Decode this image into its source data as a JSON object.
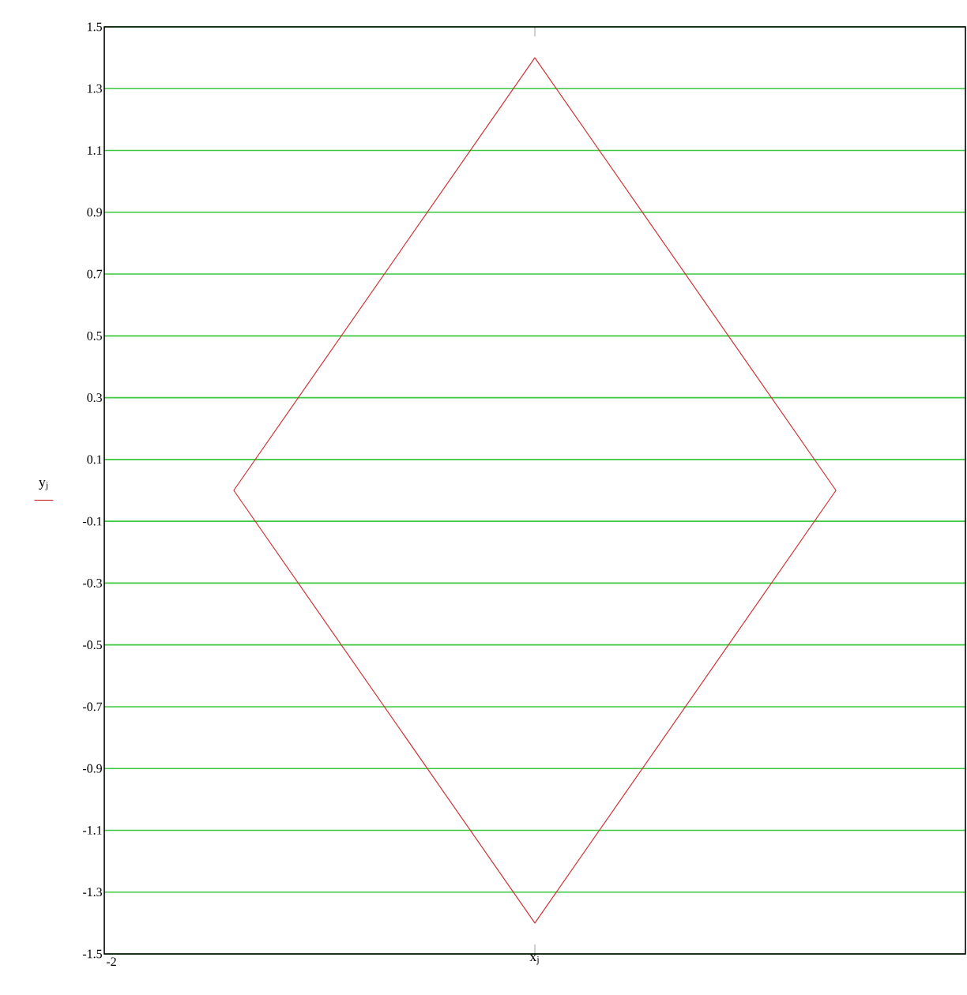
{
  "chart_data": {
    "type": "line",
    "categories": [
      null,
      null,
      null
    ],
    "series": [
      {
        "color": "#cc3333",
        "values": [
          0,
          1.4,
          0
        ]
      },
      {
        "color": "#cc3333",
        "values": [
          0,
          -1.4,
          0
        ]
      }
    ],
    "xlabel": "x$_{j}$",
    "ylabel": "y$_{j}$",
    "annotations": [
      "-2"
    ],
    "ylim": [
      -1.5,
      1.5
    ],
    "yticks": [
      {
        "value": -1.5,
        "label": "-1.5"
      },
      {
        "value": -1.3,
        "label": "-1.3"
      },
      {
        "value": -1.1,
        "label": "-1.1"
      },
      {
        "value": -0.9,
        "label": "-0.9"
      },
      {
        "value": -0.7,
        "label": "-0.7"
      },
      {
        "value": -0.5,
        "label": "-0.5"
      },
      {
        "value": -0.3,
        "label": "-0.3"
      },
      {
        "value": -0.1,
        "label": "-0.1"
      },
      {
        "value": 0.1,
        "label": "0.1"
      },
      {
        "value": 0.3,
        "label": "0.3"
      },
      {
        "value": 0.5,
        "label": "0.5"
      },
      {
        "value": 0.7,
        "label": "0.7"
      },
      {
        "value": 0.9,
        "label": "0.9"
      },
      {
        "value": 1.1,
        "label": "1.1"
      },
      {
        "value": 1.3,
        "label": "1.3"
      },
      {
        "value": 1.5,
        "label": "1.5"
      }
    ],
    "grid": "y",
    "marker": "none",
    "line_style": "solid"
  }
}
